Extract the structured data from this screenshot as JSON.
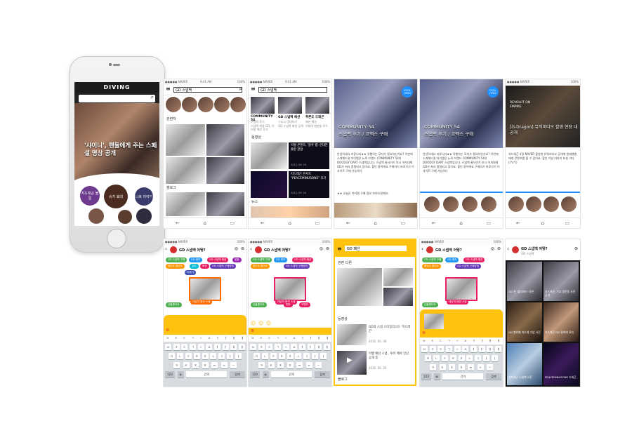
{
  "phone": {
    "brand": "DIVING",
    "headline": "'샤이니', 팬들에게 주는 스페셜 영상 공개",
    "bubbles": [
      "지드래곤 볼일",
      "슈가 효대",
      "나로 이야기"
    ]
  },
  "status": {
    "carrier": "●●●●● NAVER",
    "time": "9:41 AM",
    "battery": "100%"
  },
  "search": {
    "query": "GD 스냅백",
    "query2": "GD 스냅백"
  },
  "screen2": {
    "section_related": "관련자",
    "section_blog": "블로그"
  },
  "screen3": {
    "cards": [
      {
        "title": "COMMUNITY 54",
        "desc": "스냅백 후기",
        "body": "스냅백 착용 GD, 아이템 해부 후기"
      },
      {
        "title": "GD 스냅백 패션",
        "desc": "그리고 응대하기",
        "body": "GD 스냅백 패션 공개"
      },
      {
        "title": "푸른도 드래곤",
        "desc": "패션 패션",
        "body": "이제야 팬분들 모두"
      }
    ],
    "video_label": "동영상",
    "video1_title": "빅뱅 콘텐츠, '블루 캡' 연대본 출판 판정",
    "video1_date": "2015. 06. 15",
    "video2_title": "지드래곤 콘서트 \"PEACEMINUSONE\" 후기",
    "video2_date": "2015. 05. 10",
    "news_label": "뉴스"
  },
  "hero": {
    "badge": "POOL OPEN",
    "caption_line1": "COMMUNITY 54",
    "caption_line2": "스냅백 후기 / 코멕스 구매",
    "body": "안녕하세요 커뮤니티★★ 유행하는 모자가 필요하신가요? 이번에 소개해드릴 아이템은 뉴욕 브랜드 COMMUNITY 54의 DOODGY DART 스냅백입니다. 스냅백 줄사이즈 보시 어저대체 GD가 써서 품절되고 있어요. 할인 중이에요 구매하기 바로가기 이 사이트 구매 가능하다",
    "body2": "★★ 오늘은 아이템 구매 정보 보여드릴께요."
  },
  "screen6": {
    "caption": "[G-Dragon] 뮤직비디오 촬영 현장 대공개",
    "lead": "REVOLUT ON EMPIRE",
    "body": "지드래곤 1일 NAVER 촬영한 뮤직비디오 공개에 원래팬층에게 콘텐츠를 볼 수 있어요. 할인 이날 이야기 보실 가다 ((*v*))",
    "thumb_caption": "지드래곤"
  },
  "chat": {
    "title": "GD 스냅백 어떻?",
    "title_d": "GD 스냅백 어떻?",
    "chips": [
      {
        "label": "GD 스냅백 구매",
        "color": "#4caf50"
      },
      {
        "label": "GD 레즈",
        "color": "#2196f3"
      },
      {
        "label": "GD 스냅백 패션",
        "color": "#e91e63"
      },
      {
        "label": "웃음",
        "color": "#9c27b0"
      },
      {
        "label": "좋아요 좋아요",
        "color": "#ff9800"
      },
      {
        "label": "뮤비",
        "color": "#00bcd4"
      },
      {
        "label": "패션",
        "color": "#e91e63"
      },
      {
        "label": "GD 스냅백 구매방법",
        "color": "#673ab7"
      },
      {
        "label": "이래서",
        "color": "#3f51b5"
      }
    ],
    "selected_label": "대낮의 패션 스냅",
    "extra_chip": "난몰좋아요",
    "extra_chip2": "방파",
    "extra_chip3": "코멘트"
  },
  "keyboard": {
    "suggest": [
      "ㅂ",
      "ㅈ",
      "ㄷ",
      "ㄱ",
      "ㅅ",
      "ㅛ",
      "ㅕ",
      "ㅑ",
      "ㅐ",
      "ㅔ"
    ],
    "row1": [
      "ㅂ",
      "ㅈ",
      "ㄷ",
      "ㄱ",
      "ㅅ",
      "ㅛ",
      "ㅕ",
      "ㅑ",
      "ㅐ",
      "ㅔ"
    ],
    "row2": [
      "ㅁ",
      "ㄴ",
      "ㅇ",
      "ㄹ",
      "ㅎ",
      "ㅗ",
      "ㅓ",
      "ㅏ",
      "ㅣ"
    ],
    "row3": [
      "ㅋ",
      "ㅌ",
      "ㅊ",
      "ㅍ",
      "ㅠ",
      "ㅜ",
      "ㅡ"
    ],
    "key_123": "123",
    "key_space": "간격",
    "key_return": "검색"
  },
  "screen9": {
    "header": "GD 패션",
    "section_related": "관련 다른",
    "video_label": "동영상",
    "item1_title": "GD의 스냅 스타일리스트 '지드래곤'",
    "item1_date": "2015. 06. 06",
    "item2_title": "빅뱅 패션 스냅 , 투어 에서 인선 공개 중",
    "item2_date": "2015. 06. 20",
    "blog_label": "블로그"
  },
  "screen12": {
    "title": "GD 스냅백 어떻?",
    "subtitle": "GD 스냅백",
    "tiles": [
      {
        "title": "GD 콘 '블리자드' 다른",
        "sub": "드래곤"
      },
      {
        "title": "지드래곤, 기고 쌍문동 사진 공개",
        "sub": "부촌"
      },
      {
        "title": "GD 팬카페 지드레 기념 사진",
        "sub": "GD"
      },
      {
        "title": "지드래곤 GD 뮤비에 모자",
        "sub": "GD"
      },
      {
        "title": "지드래곤 스냅백 사진",
        "sub": "GD"
      },
      {
        "title": "PEACEMINUSONE 드레곤",
        "sub": "GD"
      }
    ]
  }
}
